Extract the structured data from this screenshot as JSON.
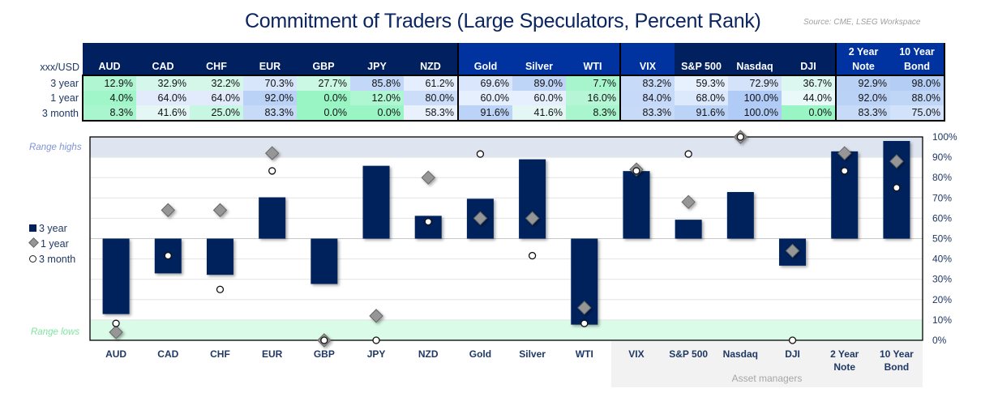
{
  "title": "Commitment of Traders (Large Speculators, Percent Rank)",
  "source": "Source: CME, LSEG Workspace",
  "table": {
    "corner_label": "xxx/USD",
    "columns": [
      "AUD",
      "CAD",
      "CHF",
      "EUR",
      "GBP",
      "JPY",
      "NZD",
      "Gold",
      "Silver",
      "WTI",
      "VIX",
      "S&P 500",
      "Nasdaq",
      "DJI",
      "2 Year Note",
      "10 Year Bond"
    ],
    "rows": [
      {
        "label": "3 year",
        "values": [
          "12.9%",
          "32.9%",
          "32.2%",
          "70.3%",
          "27.7%",
          "85.8%",
          "61.2%",
          "69.6%",
          "89.0%",
          "7.7%",
          "83.2%",
          "59.3%",
          "72.9%",
          "36.7%",
          "92.9%",
          "98.0%"
        ]
      },
      {
        "label": "1 year",
        "values": [
          "4.0%",
          "64.0%",
          "64.0%",
          "92.0%",
          "0.0%",
          "12.0%",
          "80.0%",
          "60.0%",
          "60.0%",
          "16.0%",
          "84.0%",
          "68.0%",
          "100.0%",
          "44.0%",
          "92.0%",
          "88.0%"
        ]
      },
      {
        "label": "3 month",
        "values": [
          "8.3%",
          "41.6%",
          "25.0%",
          "83.3%",
          "0.0%",
          "0.0%",
          "58.3%",
          "91.6%",
          "41.6%",
          "8.3%",
          "83.3%",
          "91.6%",
          "100.0%",
          "0.0%",
          "83.3%",
          "75.0%"
        ]
      }
    ],
    "header_colors": {
      "dark": "#002060",
      "bright": "#0033a0"
    },
    "heat_colors": {
      "low": "#99f5c4",
      "mid": "#f4f8ff",
      "high": "#b0cbf5"
    }
  },
  "chart_data": {
    "type": "bar",
    "categories": [
      "AUD",
      "CAD",
      "CHF",
      "EUR",
      "GBP",
      "JPY",
      "NZD",
      "Gold",
      "Silver",
      "WTI",
      "VIX",
      "S&P 500",
      "Nasdaq",
      "DJI",
      "2 Year Note",
      "10 Year Bond"
    ],
    "baseline": 50,
    "series": [
      {
        "name": "3 year",
        "marker": "bar",
        "color": "#03205c",
        "values": [
          12.9,
          32.9,
          32.2,
          70.3,
          27.7,
          85.8,
          61.2,
          69.6,
          89.0,
          7.7,
          83.2,
          59.3,
          72.9,
          36.7,
          92.9,
          98.0
        ]
      },
      {
        "name": "1 year",
        "marker": "diamond",
        "color": "#969696",
        "values": [
          4.0,
          64.0,
          64.0,
          92.0,
          0.0,
          12.0,
          80.0,
          60.0,
          60.0,
          16.0,
          84.0,
          68.0,
          100.0,
          44.0,
          92.0,
          88.0
        ]
      },
      {
        "name": "3 month",
        "marker": "circle",
        "color": "#ffffff",
        "values": [
          8.3,
          41.6,
          25.0,
          83.3,
          0.0,
          0.0,
          58.3,
          91.6,
          41.6,
          8.3,
          83.3,
          91.6,
          100.0,
          0.0,
          83.3,
          75.0
        ]
      }
    ],
    "ylim": [
      0,
      100
    ],
    "yticks": [
      "0%",
      "10%",
      "20%",
      "30%",
      "40%",
      "50%",
      "60%",
      "70%",
      "80%",
      "90%",
      "100%"
    ],
    "y_axis_side": "right",
    "grid": true,
    "legend_placement": "left",
    "bands": [
      {
        "label": "Range highs",
        "from": 90,
        "to": 100,
        "color": "#dfe5f0",
        "label_color": "#7f93d6"
      },
      {
        "label": "Range lows",
        "from": 0,
        "to": 10,
        "color": "#d9fbe8",
        "label_color": "#7ee59f"
      }
    ],
    "group_annotation": {
      "label": "Asset managers",
      "categories": [
        "VIX",
        "S&P 500",
        "Nasdaq",
        "DJI",
        "2 Year Note",
        "10 Year Bond"
      ]
    }
  }
}
